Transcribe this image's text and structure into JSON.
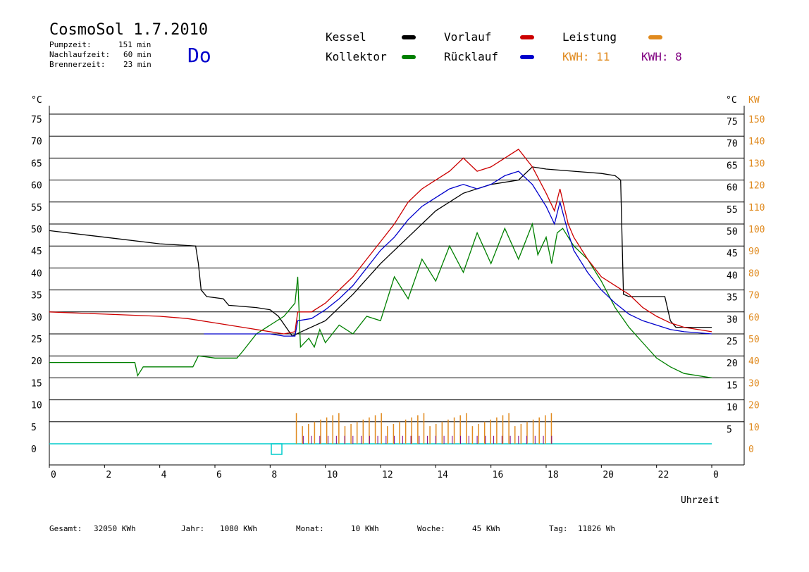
{
  "header": {
    "title": "CosmoSol 1.7.2010",
    "weekday": "Do",
    "pumpzeit_label": "Pumpzeit:",
    "pumpzeit_value": "151 min",
    "nachlaufzeit_label": "Nachlaufzeit:",
    "nachlaufzeit_value": "60 min",
    "brennerzeit_label": "Brennerzeit:",
    "brennerzeit_value": "23 min"
  },
  "legend": {
    "kessel": "Kessel",
    "kollektor": "Kollektor",
    "vorlauf": "Vorlauf",
    "ruecklauf": "Rücklauf",
    "leistung": "Leistung",
    "kwh1": "KWH: 11",
    "kwh2": "KWH: 8"
  },
  "footer": {
    "gesamt_label": "Gesamt:",
    "gesamt_value": "32050 KWh",
    "jahr_label": "Jahr:",
    "jahr_value": "1080 KWh",
    "monat_label": "Monat:",
    "monat_value": "10 KWh",
    "woche_label": "Woche:",
    "woche_value": "45 KWh",
    "tag_label": "Tag:",
    "tag_value": "11826 Wh"
  },
  "colors": {
    "kessel": "#000000",
    "kollektor": "#008000",
    "vorlauf": "#cc0000",
    "ruecklauf": "#0000cc",
    "leistung": "#e08a1e",
    "kwh2": "#800080",
    "baseline": "#00cccc"
  },
  "chart_data": {
    "type": "line",
    "xlabel": "Uhrzeit",
    "left_unit": "°C",
    "right_unit_temp": "°C",
    "right_unit_power": "KW",
    "xlim": [
      0,
      24
    ],
    "ylim": [
      0,
      75
    ],
    "y_ticks": [
      0,
      5,
      10,
      15,
      20,
      25,
      30,
      35,
      40,
      45,
      50,
      55,
      60,
      65,
      70,
      75
    ],
    "x_tick_labels": [
      "0",
      "2",
      "4",
      "6",
      "8",
      "10",
      "12",
      "14",
      "16",
      "18",
      "20",
      "22",
      "0"
    ],
    "right_power_ticks": [
      "0",
      "10",
      "20",
      "30",
      "40",
      "50",
      "60",
      "70",
      "80",
      "90",
      "100",
      "110",
      "120",
      "130",
      "140",
      "150"
    ],
    "series": [
      {
        "name": "Kessel",
        "color": "#000000",
        "points": [
          [
            0,
            48.5
          ],
          [
            2,
            47
          ],
          [
            4,
            45.5
          ],
          [
            5.3,
            45
          ],
          [
            5.4,
            41
          ],
          [
            5.5,
            35
          ],
          [
            5.7,
            33.5
          ],
          [
            6.3,
            33
          ],
          [
            6.5,
            31.5
          ],
          [
            7.5,
            31
          ],
          [
            8,
            30.5
          ],
          [
            8.3,
            29
          ],
          [
            8.8,
            24.5
          ],
          [
            9.3,
            26
          ],
          [
            10,
            28
          ],
          [
            11,
            34
          ],
          [
            12,
            41
          ],
          [
            13,
            47
          ],
          [
            14,
            53
          ],
          [
            15,
            57
          ],
          [
            16,
            59
          ],
          [
            17,
            60
          ],
          [
            17.5,
            63
          ],
          [
            18,
            62.5
          ],
          [
            19,
            62
          ],
          [
            20,
            61.5
          ],
          [
            20.5,
            61
          ],
          [
            20.7,
            60
          ],
          [
            20.8,
            34
          ],
          [
            21,
            33.5
          ],
          [
            22,
            33.5
          ],
          [
            22.3,
            33.5
          ],
          [
            22.5,
            28
          ],
          [
            22.7,
            26.5
          ],
          [
            24,
            26.5
          ]
        ]
      },
      {
        "name": "Kollektor",
        "color": "#008000",
        "points": [
          [
            0,
            18.5
          ],
          [
            2,
            18.5
          ],
          [
            3.1,
            18.5
          ],
          [
            3.2,
            15.5
          ],
          [
            3.4,
            17.5
          ],
          [
            4,
            17.5
          ],
          [
            5.2,
            17.5
          ],
          [
            5.4,
            20
          ],
          [
            6,
            19.5
          ],
          [
            6.8,
            19.5
          ],
          [
            7,
            21
          ],
          [
            7.5,
            25
          ],
          [
            8,
            27
          ],
          [
            8.5,
            29
          ],
          [
            8.9,
            32
          ],
          [
            9,
            38
          ],
          [
            9.1,
            22
          ],
          [
            9.4,
            24
          ],
          [
            9.6,
            22
          ],
          [
            9.8,
            26
          ],
          [
            10,
            23
          ],
          [
            10.5,
            27
          ],
          [
            11,
            25
          ],
          [
            11.5,
            29
          ],
          [
            12,
            28
          ],
          [
            12.5,
            38
          ],
          [
            13,
            33
          ],
          [
            13.5,
            42
          ],
          [
            14,
            37
          ],
          [
            14.5,
            45
          ],
          [
            15,
            39
          ],
          [
            15.5,
            48
          ],
          [
            16,
            41
          ],
          [
            16.5,
            49
          ],
          [
            17,
            42
          ],
          [
            17.5,
            50
          ],
          [
            17.7,
            43
          ],
          [
            18,
            47
          ],
          [
            18.2,
            41
          ],
          [
            18.4,
            48
          ],
          [
            18.6,
            49
          ],
          [
            19,
            45
          ],
          [
            19.5,
            42
          ],
          [
            20,
            37
          ],
          [
            20.5,
            31
          ],
          [
            21,
            26.5
          ],
          [
            21.5,
            23
          ],
          [
            22,
            19.5
          ],
          [
            22.5,
            17.5
          ],
          [
            23,
            16
          ],
          [
            24,
            15
          ]
        ]
      },
      {
        "name": "Vorlauf",
        "color": "#cc0000",
        "points": [
          [
            0,
            30
          ],
          [
            2,
            29.5
          ],
          [
            4,
            29
          ],
          [
            5,
            28.5
          ],
          [
            6,
            27.5
          ],
          [
            7,
            26.5
          ],
          [
            8,
            25.5
          ],
          [
            8.5,
            25
          ],
          [
            8.9,
            25.5
          ],
          [
            9,
            30
          ],
          [
            9.5,
            30
          ],
          [
            10,
            32
          ],
          [
            10.5,
            35
          ],
          [
            11,
            38
          ],
          [
            11.5,
            42
          ],
          [
            12,
            46
          ],
          [
            12.5,
            50
          ],
          [
            13,
            55
          ],
          [
            13.5,
            58
          ],
          [
            14,
            60
          ],
          [
            14.5,
            62
          ],
          [
            15,
            65
          ],
          [
            15.5,
            62
          ],
          [
            16,
            63
          ],
          [
            16.5,
            65
          ],
          [
            17,
            67
          ],
          [
            17.5,
            63
          ],
          [
            18,
            57
          ],
          [
            18.3,
            53
          ],
          [
            18.5,
            58
          ],
          [
            18.8,
            50
          ],
          [
            19,
            47
          ],
          [
            19.5,
            42
          ],
          [
            20,
            38
          ],
          [
            20.5,
            36
          ],
          [
            21,
            34
          ],
          [
            21.5,
            31
          ],
          [
            22,
            29
          ],
          [
            22.5,
            27.5
          ],
          [
            23,
            26.5
          ],
          [
            24,
            25.5
          ]
        ]
      },
      {
        "name": "Rücklauf",
        "color": "#0000cc",
        "points": [
          [
            5.6,
            25
          ],
          [
            7,
            25
          ],
          [
            8,
            25
          ],
          [
            8.5,
            24.5
          ],
          [
            8.9,
            24.5
          ],
          [
            9,
            28
          ],
          [
            9.5,
            28.5
          ],
          [
            10,
            30.5
          ],
          [
            10.5,
            33
          ],
          [
            11,
            36
          ],
          [
            11.5,
            40
          ],
          [
            12,
            44
          ],
          [
            12.5,
            47
          ],
          [
            13,
            51
          ],
          [
            13.5,
            54
          ],
          [
            14,
            56
          ],
          [
            14.5,
            58
          ],
          [
            15,
            59
          ],
          [
            15.5,
            58
          ],
          [
            16,
            59
          ],
          [
            16.5,
            61
          ],
          [
            17,
            62
          ],
          [
            17.5,
            59
          ],
          [
            18,
            54
          ],
          [
            18.3,
            50
          ],
          [
            18.5,
            55
          ],
          [
            18.8,
            48
          ],
          [
            19,
            44
          ],
          [
            19.5,
            39
          ],
          [
            20,
            35
          ],
          [
            20.5,
            32
          ],
          [
            21,
            29.5
          ],
          [
            21.5,
            28
          ],
          [
            22,
            27
          ],
          [
            22.5,
            26
          ],
          [
            23,
            25.5
          ],
          [
            24,
            25
          ]
        ]
      }
    ]
  }
}
